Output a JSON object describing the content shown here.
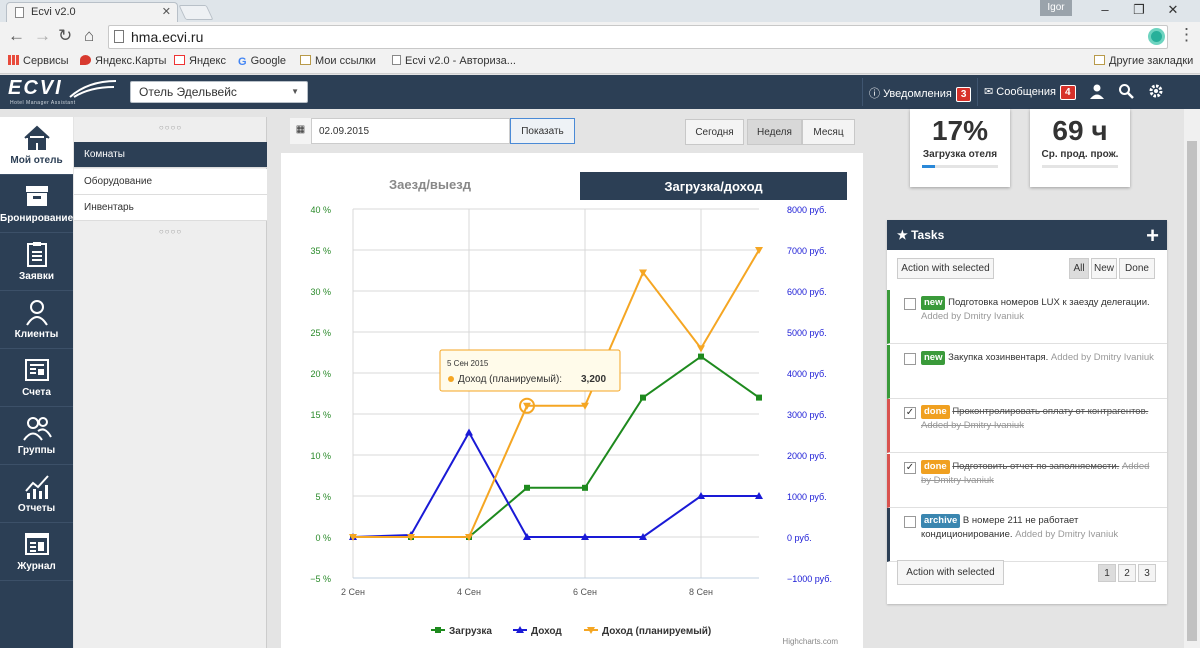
{
  "browser": {
    "tab_title": "Ecvi v2.0",
    "user": "Igor",
    "url": "hma.ecvi.ru",
    "bookmarks": [
      {
        "label": "Сервисы",
        "color": "#e84b3c"
      },
      {
        "label": "Яндекс.Карты",
        "color": "#d83a2f"
      },
      {
        "label": "Яндекс",
        "color": "#e33"
      },
      {
        "label": "Google",
        "color": "#4285f4"
      },
      {
        "label": "Мои ссылки",
        "color": "#e8b84a"
      },
      {
        "label": "Ecvi v2.0 - Авториза...",
        "color": "#888"
      }
    ],
    "other_bookmarks": "Другие закладки"
  },
  "header": {
    "logo": "ECVI",
    "logo_sub": "Hotel Manager Assistant",
    "hotel": "Отель Эдельвейс",
    "notifications_label": "Уведомления",
    "notifications_count": "3",
    "messages_label": "Сообщения",
    "messages_count": "4"
  },
  "sidebar": [
    {
      "label": "Мой отель",
      "icon": "home-icon"
    },
    {
      "label": "Бронирование",
      "icon": "archive-icon"
    },
    {
      "label": "Заявки",
      "icon": "clipboard-icon"
    },
    {
      "label": "Клиенты",
      "icon": "user-icon"
    },
    {
      "label": "Счета",
      "icon": "invoice-icon"
    },
    {
      "label": "Группы",
      "icon": "group-icon"
    },
    {
      "label": "Отчеты",
      "icon": "chart-icon"
    },
    {
      "label": "Журнал",
      "icon": "journal-icon"
    }
  ],
  "submenu": [
    "Комнаты",
    "Оборудование",
    "Инвентарь"
  ],
  "toolbar": {
    "date": "02.09.2015",
    "show": "Показать",
    "today": "Сегодня",
    "week": "Неделя",
    "month": "Месяц"
  },
  "chart_tabs": {
    "checkin": "Заезд/выезд",
    "load": "Загрузка/доход"
  },
  "chart_data": {
    "type": "line",
    "x": [
      "2 Сен",
      "3 Сен",
      "4 Сен",
      "5 Сен",
      "6 Сен",
      "7 Сен",
      "8 Сен",
      "9 Сен"
    ],
    "xticks": [
      "2 Сен",
      "4 Сен",
      "6 Сен",
      "8 Сен"
    ],
    "yticks_left": [
      "40 %",
      "35 %",
      "30 %",
      "25 %",
      "20 %",
      "15 %",
      "10 %",
      "5 %",
      "0 %",
      "−5 %"
    ],
    "yticks_right": [
      "8000 руб.",
      "7000 руб.",
      "6000 руб.",
      "5000 руб.",
      "4000 руб.",
      "3000 руб.",
      "2000 руб.",
      "1000 руб.",
      "0 руб.",
      "−1000 руб."
    ],
    "ylim_left": [
      -5,
      40
    ],
    "ylim_right": [
      -1000,
      8000
    ],
    "series": [
      {
        "name": "Загрузка",
        "axis": "left",
        "color": "#1e8a1e",
        "values": [
          0,
          0,
          0,
          6,
          6,
          17,
          22,
          17
        ]
      },
      {
        "name": "Доход",
        "axis": "right",
        "color": "#1a1ad6",
        "values": [
          0,
          50,
          2550,
          0,
          0,
          0,
          1000,
          1000
        ]
      },
      {
        "name": "Доход (планируемый)",
        "axis": "right",
        "color": "#f5a623",
        "values": [
          0,
          0,
          0,
          3200,
          3200,
          6450,
          4600,
          7000
        ]
      }
    ],
    "tooltip": {
      "date": "5 Сен 2015",
      "series": "Доход (планируемый)",
      "value": "3,200"
    },
    "credit": "Highcharts.com"
  },
  "stats": [
    {
      "value": "17%",
      "label": "Загрузка отеля",
      "progress": 0.17
    },
    {
      "value": "69 ч",
      "label": "Ср. прод. прож.",
      "progress": 0
    }
  ],
  "tasks": {
    "title": "Tasks",
    "action": "Action with selected",
    "filters": [
      "All",
      "New",
      "Done"
    ],
    "items": [
      {
        "tag": "new",
        "tag_color": "#3a9a3a",
        "text": "Подготовка номеров LUX к заезду делегации.",
        "by": "Added by Dmitry Ivaniuk",
        "checked": false,
        "done": false,
        "border": "#3a9a3a"
      },
      {
        "tag": "new",
        "tag_color": "#3a9a3a",
        "text": "Закупка хозинвентаря.",
        "by": "Added by Dmitry Ivaniuk",
        "checked": false,
        "done": false,
        "border": "#3a9a3a"
      },
      {
        "tag": "done",
        "tag_color": "#f0a020",
        "text": "Проконтролировать оплату от контрагентов.",
        "by": "Added by Dmitry Ivaniuk",
        "checked": true,
        "done": true,
        "border": "#d9534f"
      },
      {
        "tag": "done",
        "tag_color": "#f0a020",
        "text": "Подготовить отчет по заполняемости.",
        "by": "Added by Dmitry Ivaniuk",
        "checked": true,
        "done": true,
        "border": "#d9534f"
      },
      {
        "tag": "archive",
        "tag_color": "#3a86b0",
        "text": "В номере 211 не работает кондиционирование.",
        "by": "Added by Dmitry Ivaniuk",
        "checked": false,
        "done": false,
        "border": "#2c3f55"
      }
    ],
    "pages": [
      "1",
      "2",
      "3"
    ]
  }
}
